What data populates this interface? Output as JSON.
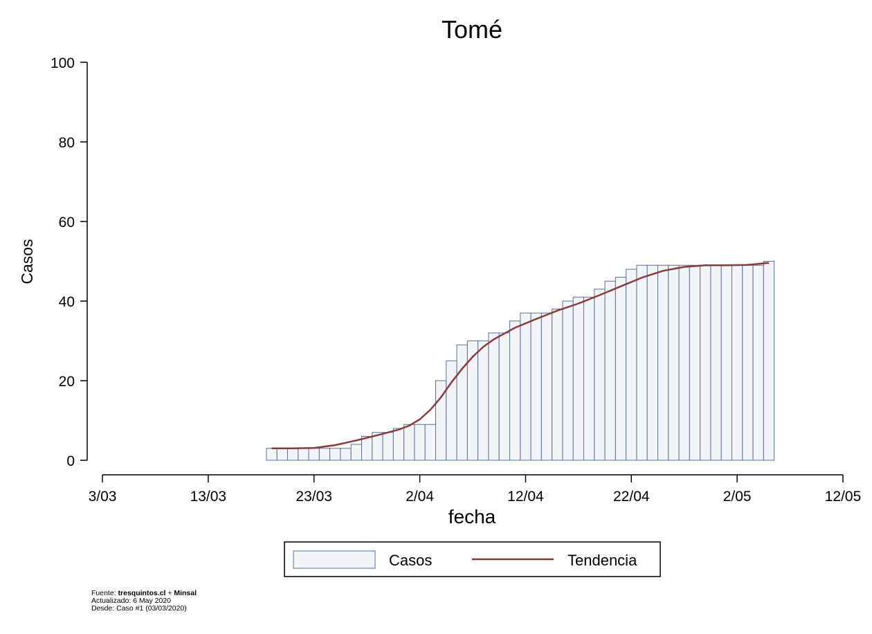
{
  "chart_data": {
    "type": "bar",
    "title": "Tomé",
    "xlabel": "fecha",
    "ylabel": "Casos",
    "ylim": [
      0,
      100
    ],
    "yticks": [
      0,
      20,
      40,
      60,
      80,
      100
    ],
    "xticks": [
      "3/03",
      "13/03",
      "23/03",
      "2/04",
      "12/04",
      "22/04",
      "2/05",
      "12/05"
    ],
    "x_start": "2020-03-03",
    "x_end": "2020-05-12",
    "series": [
      {
        "name": "Casos",
        "kind": "bar",
        "color": "#f2f4f7",
        "edge_color": "#5b6f9c",
        "x": [
          "2020-03-19",
          "2020-03-20",
          "2020-03-21",
          "2020-03-22",
          "2020-03-23",
          "2020-03-24",
          "2020-03-25",
          "2020-03-26",
          "2020-03-27",
          "2020-03-28",
          "2020-03-29",
          "2020-03-30",
          "2020-03-31",
          "2020-04-01",
          "2020-04-02",
          "2020-04-03",
          "2020-04-04",
          "2020-04-05",
          "2020-04-06",
          "2020-04-07",
          "2020-04-08",
          "2020-04-09",
          "2020-04-10",
          "2020-04-11",
          "2020-04-12",
          "2020-04-13",
          "2020-04-14",
          "2020-04-15",
          "2020-04-16",
          "2020-04-17",
          "2020-04-18",
          "2020-04-19",
          "2020-04-20",
          "2020-04-21",
          "2020-04-22",
          "2020-04-23",
          "2020-04-24",
          "2020-04-25",
          "2020-04-26",
          "2020-04-27",
          "2020-04-28",
          "2020-04-29",
          "2020-04-30",
          "2020-05-01",
          "2020-05-02",
          "2020-05-03",
          "2020-05-04",
          "2020-05-05"
        ],
        "values": [
          3,
          3,
          3,
          3,
          3,
          3,
          3,
          3,
          4,
          6,
          7,
          7,
          8,
          9,
          9,
          9,
          20,
          25,
          29,
          30,
          30,
          32,
          32,
          35,
          37,
          37,
          37,
          38,
          40,
          41,
          41,
          43,
          45,
          46,
          48,
          49,
          49,
          49,
          49,
          49,
          49,
          49,
          49,
          49,
          49,
          49,
          49,
          50
        ]
      },
      {
        "name": "Tendencia",
        "kind": "line",
        "color": "#8b3a3a",
        "x": [
          "2020-03-19",
          "2020-03-21",
          "2020-03-23",
          "2020-03-25",
          "2020-03-27",
          "2020-03-29",
          "2020-03-31",
          "2020-04-01",
          "2020-04-02",
          "2020-04-03",
          "2020-04-04",
          "2020-04-05",
          "2020-04-06",
          "2020-04-07",
          "2020-04-08",
          "2020-04-09",
          "2020-04-11",
          "2020-04-13",
          "2020-04-15",
          "2020-04-17",
          "2020-04-19",
          "2020-04-21",
          "2020-04-23",
          "2020-04-25",
          "2020-04-27",
          "2020-04-29",
          "2020-05-01",
          "2020-05-03",
          "2020-05-05"
        ],
        "values": [
          3,
          3,
          3.1,
          3.8,
          5,
          6.3,
          7.7,
          8.7,
          10.3,
          12.7,
          15.8,
          19.6,
          23,
          26,
          28.5,
          30.4,
          33.3,
          35.5,
          37.6,
          39.4,
          41.5,
          43.7,
          45.9,
          47.6,
          48.6,
          49,
          49,
          49.1,
          49.6
        ]
      }
    ]
  },
  "footer": {
    "line1_prefix": "Fuente: ",
    "line1_source": "tresquintos.cl",
    "line1_sep": " + ",
    "line1_source2": "Minsal",
    "line2": "Actualizado: 6 May 2020",
    "line3": "Desde: Caso #1   (03/03/2020)"
  }
}
